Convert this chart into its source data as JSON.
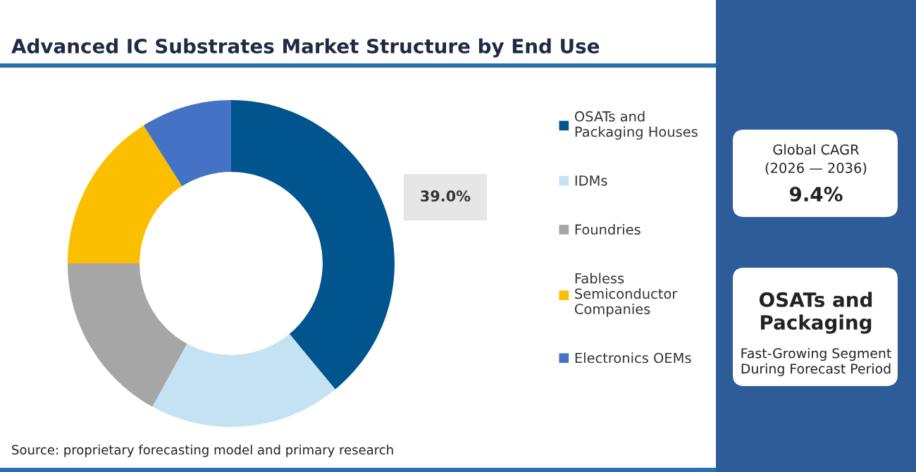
{
  "chart_data": [
    {
      "type": "donut",
      "title": "Advanced IC Substrates Market Structure by End Use",
      "categories": [
        "OSATs and Packaging Houses",
        "IDMs",
        "Foundries",
        "Fabless Semiconductor Companies",
        "Electronics OEMs"
      ],
      "values": [
        39,
        19,
        17,
        16,
        9
      ],
      "colors": [
        "#00558f",
        "#c5e2f2",
        "#a6a6a6",
        "#fbbf00",
        "#4472c4"
      ],
      "value_labels": [
        "39.0%",
        null,
        null,
        null,
        null
      ],
      "legend": "right",
      "annotations": [
        "Source: proprietary forecasting model and primary research"
      ]
    },
    {
      "type": "other",
      "annotations": [
        "Global CAGR",
        "(2026 — 2036)",
        "9.4%",
        "OSATs and Packaging",
        "Fast-Growing Segment During Forecast Period"
      ]
    }
  ]
}
